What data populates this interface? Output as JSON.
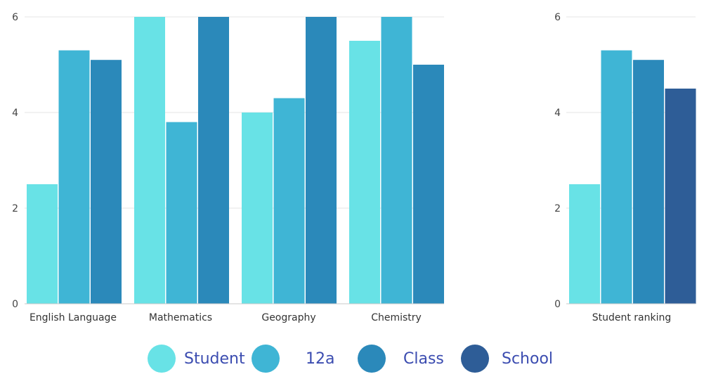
{
  "chart_data": [
    {
      "type": "bar",
      "title": "",
      "xlabel": "",
      "ylabel": "",
      "ylim": [
        0,
        6
      ],
      "yticks": [
        0,
        2,
        4,
        6
      ],
      "grid": true,
      "categories": [
        "English Language",
        "Mathematics",
        "Geography",
        "Chemistry"
      ],
      "series": [
        {
          "name": "Student",
          "color": "#68e2e6",
          "values": [
            2.5,
            6,
            4,
            5.5
          ]
        },
        {
          "name": "12a",
          "color": "#3fb5d5",
          "values": [
            5.3,
            3.8,
            4.3,
            6
          ]
        },
        {
          "name": "Class",
          "color": "#2b89ba",
          "values": [
            5.1,
            6,
            6,
            5
          ]
        }
      ]
    },
    {
      "type": "bar",
      "title": "",
      "xlabel": "",
      "ylabel": "",
      "ylim": [
        0,
        6
      ],
      "yticks": [
        0,
        2,
        4,
        6
      ],
      "grid": true,
      "categories": [
        "Student ranking"
      ],
      "series": [
        {
          "name": "Student",
          "color": "#68e2e6",
          "values": [
            2.5
          ]
        },
        {
          "name": "12a",
          "color": "#3fb5d5",
          "values": [
            5.3
          ]
        },
        {
          "name": "Class",
          "color": "#2b89ba",
          "values": [
            5.1
          ]
        },
        {
          "name": "School",
          "color": "#2e5d97",
          "values": [
            4.5
          ]
        }
      ]
    }
  ],
  "legend": {
    "placement": "bottom-center",
    "items": [
      {
        "label": "Student",
        "color": "#68e2e6"
      },
      {
        "label": "12a",
        "color": "#3fb5d5"
      },
      {
        "label": "Class",
        "color": "#2b89ba"
      },
      {
        "label": "School",
        "color": "#2e5d97"
      }
    ]
  }
}
